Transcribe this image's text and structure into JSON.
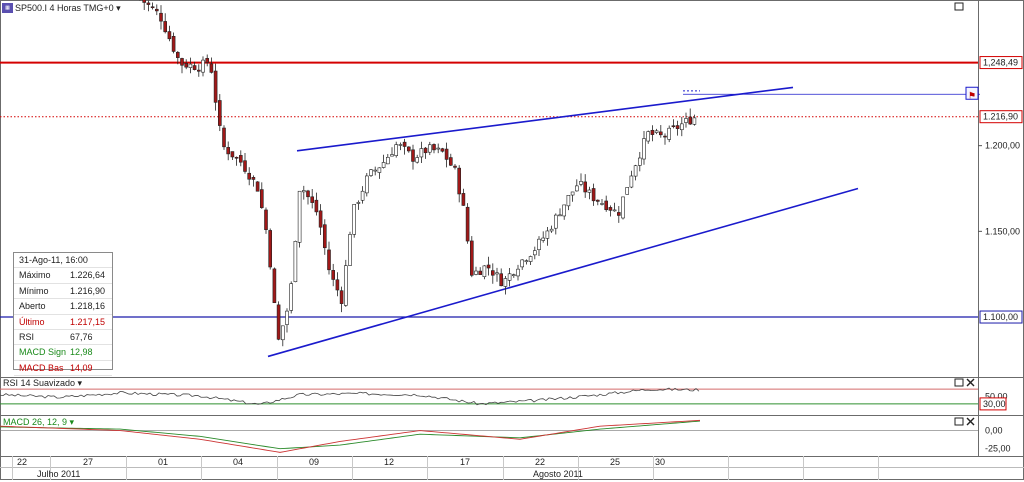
{
  "header": {
    "symbol_label": "SP500.I 4 Horas TMG+0 ▾",
    "icon": "chart-logo-icon"
  },
  "info_panel": {
    "rows": [
      {
        "label": "31-Ago-11, 16:00",
        "value": "",
        "color": "#222222"
      },
      {
        "label": "Máximo",
        "value": "1.226,64",
        "color": "#222222"
      },
      {
        "label": "Mínimo",
        "value": "1.216,90",
        "color": "#222222"
      },
      {
        "label": "Aberto",
        "value": "1.218,16",
        "color": "#222222"
      },
      {
        "label": "Último",
        "value": "1.217,15",
        "color": "#c00000"
      },
      {
        "label": "RSI",
        "value": "67,76",
        "color": "#222222"
      },
      {
        "label": "MACD Sign",
        "value": "12,98",
        "color": "#1a8a1a"
      },
      {
        "label": "MACD Bas",
        "value": "14,09",
        "color": "#c00000"
      }
    ]
  },
  "chart_data": [
    {
      "type": "candlestick",
      "title": "SP500.I 4 Horas TMG+0",
      "y_ticks": [
        "1.200,00",
        "1.150,00"
      ],
      "ylim": [
        1065,
        1285
      ],
      "price_tags": [
        {
          "label": "1,248,49",
          "value": 1248.49,
          "color": "#d40000",
          "style": "solid"
        },
        {
          "label": "1.216,90",
          "value": 1216.9,
          "color": "#d40000",
          "style": "dotted"
        },
        {
          "label": "1.100,00",
          "value": 1100.0,
          "color": "#1a1aaa",
          "style": "solid"
        }
      ],
      "trend_lines": [
        {
          "name": "upper-channel",
          "from": [
            297,
            1197
          ],
          "to": [
            793,
            1234
          ]
        },
        {
          "name": "lower-channel",
          "from": [
            268,
            1077
          ],
          "to": [
            858,
            1175
          ]
        },
        {
          "name": "marker-line",
          "from": [
            683,
            1230
          ],
          "to": [
            980,
            1230
          ]
        }
      ],
      "close_anchors": [
        [
          140,
          1286
        ],
        [
          160,
          1276
        ],
        [
          180,
          1248
        ],
        [
          200,
          1246
        ],
        [
          210,
          1250
        ],
        [
          222,
          1200
        ],
        [
          242,
          1190
        ],
        [
          258,
          1175
        ],
        [
          268,
          1145
        ],
        [
          278,
          1085
        ],
        [
          290,
          1110
        ],
        [
          300,
          1178
        ],
        [
          318,
          1160
        ],
        [
          330,
          1125
        ],
        [
          342,
          1110
        ],
        [
          352,
          1160
        ],
        [
          368,
          1182
        ],
        [
          383,
          1190
        ],
        [
          397,
          1201
        ],
        [
          413,
          1193
        ],
        [
          428,
          1198
        ],
        [
          443,
          1196
        ],
        [
          455,
          1185
        ],
        [
          463,
          1165
        ],
        [
          472,
          1125
        ],
        [
          487,
          1130
        ],
        [
          503,
          1120
        ],
        [
          520,
          1132
        ],
        [
          535,
          1140
        ],
        [
          548,
          1150
        ],
        [
          563,
          1165
        ],
        [
          578,
          1178
        ],
        [
          593,
          1170
        ],
        [
          608,
          1165
        ],
        [
          618,
          1160
        ],
        [
          630,
          1182
        ],
        [
          648,
          1207
        ],
        [
          663,
          1205
        ],
        [
          678,
          1211
        ],
        [
          692,
          1216
        ],
        [
          698,
          1217
        ]
      ]
    },
    {
      "type": "line",
      "title": "RSI 14 Suavizado ▾",
      "y_ticks": [
        "50,00"
      ],
      "value_tag": "30,00",
      "ylim": [
        0,
        100
      ],
      "series": [
        {
          "name": "RSI",
          "color": "#444444",
          "values": [
            [
              0,
              55
            ],
            [
              60,
              48
            ],
            [
              120,
              60
            ],
            [
              200,
              52
            ],
            [
              260,
              28
            ],
            [
              300,
              55
            ],
            [
              360,
              58
            ],
            [
              420,
              55
            ],
            [
              480,
              30
            ],
            [
              540,
              40
            ],
            [
              600,
              55
            ],
            [
              650,
              70
            ],
            [
              700,
              68
            ]
          ]
        }
      ],
      "levels": [
        {
          "value": 70,
          "color": "#d46a6a"
        },
        {
          "value": 30,
          "color": "#2f8f2f"
        }
      ]
    },
    {
      "type": "line",
      "title": "MACD 26, 12, 9 ▾",
      "y_ticks": [
        "0,00",
        "-25,00"
      ],
      "ylim": [
        -35,
        20
      ],
      "series": [
        {
          "name": "MACD Sign",
          "color": "#2a8a2a",
          "values": [
            [
              0,
              5
            ],
            [
              120,
              2
            ],
            [
              200,
              -8
            ],
            [
              280,
              -25
            ],
            [
              340,
              -20
            ],
            [
              420,
              -5
            ],
            [
              520,
              -10
            ],
            [
              600,
              2
            ],
            [
              700,
              13
            ]
          ]
        },
        {
          "name": "MACD Bas",
          "color": "#cc3333",
          "values": [
            [
              0,
              6
            ],
            [
              120,
              0
            ],
            [
              200,
              -12
            ],
            [
              280,
              -30
            ],
            [
              340,
              -15
            ],
            [
              420,
              0
            ],
            [
              520,
              -12
            ],
            [
              600,
              6
            ],
            [
              700,
              14
            ]
          ]
        }
      ],
      "zero_color": "#777777"
    }
  ],
  "x_axis": {
    "day_labels": [
      {
        "x": 22,
        "label": "22"
      },
      {
        "x": 88,
        "label": "27"
      },
      {
        "x": 163,
        "label": "01"
      },
      {
        "x": 238,
        "label": "04"
      },
      {
        "x": 314,
        "label": "09"
      },
      {
        "x": 389,
        "label": "12"
      },
      {
        "x": 465,
        "label": "17"
      },
      {
        "x": 540,
        "label": "22"
      },
      {
        "x": 615,
        "label": "25"
      },
      {
        "x": 660,
        "label": "30"
      }
    ],
    "gridlines": [
      12,
      50,
      126,
      201,
      277,
      352,
      427,
      503,
      578,
      653,
      728,
      803,
      878
    ],
    "month_labels": [
      {
        "x": 55,
        "label": "Julho 2011"
      },
      {
        "x": 551,
        "label": "Agosto 2011"
      }
    ]
  },
  "colors": {
    "bull_candle": "#ffffff",
    "bear_candle": "#a01818",
    "wick": "#222222",
    "trend": "#1a1acc",
    "panel_border": "#6b6b6b",
    "grid": "#c8c8c8"
  }
}
